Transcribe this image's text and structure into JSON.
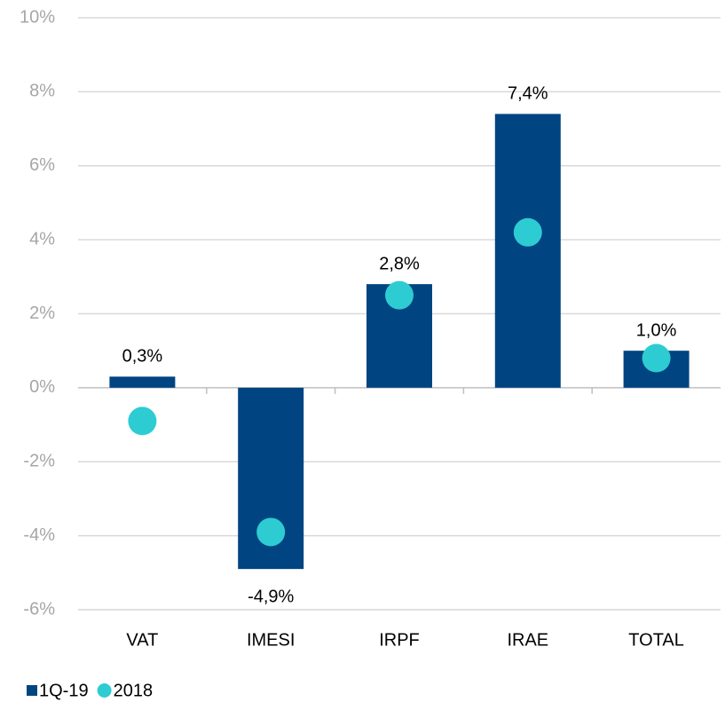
{
  "chart_data": {
    "type": "bar",
    "categories": [
      "VAT",
      "IMESI",
      "IRPF",
      "IRAE",
      "TOTAL"
    ],
    "series": [
      {
        "name": "1Q-19",
        "type": "bar",
        "color": "#004481",
        "values": [
          0.3,
          -4.9,
          2.8,
          7.4,
          1.0
        ],
        "value_labels": [
          "0,3%",
          "-4,9%",
          "2,8%",
          "7,4%",
          "1,0%"
        ]
      },
      {
        "name": "2018",
        "type": "scatter",
        "color": "#2dccd3",
        "values": [
          -0.9,
          -3.9,
          2.5,
          4.2,
          0.8
        ]
      }
    ],
    "ylim": [
      -6,
      10
    ],
    "yticks": [
      {
        "value": -6,
        "label": "-6%"
      },
      {
        "value": -4,
        "label": "-4%"
      },
      {
        "value": -2,
        "label": "-2%"
      },
      {
        "value": 0,
        "label": "0%"
      },
      {
        "value": 2,
        "label": "2%"
      },
      {
        "value": 4,
        "label": "4%"
      },
      {
        "value": 6,
        "label": "6%"
      },
      {
        "value": 8,
        "label": "8%"
      },
      {
        "value": 10,
        "label": "10%"
      }
    ],
    "grid": true,
    "legend": "bottom-left"
  }
}
